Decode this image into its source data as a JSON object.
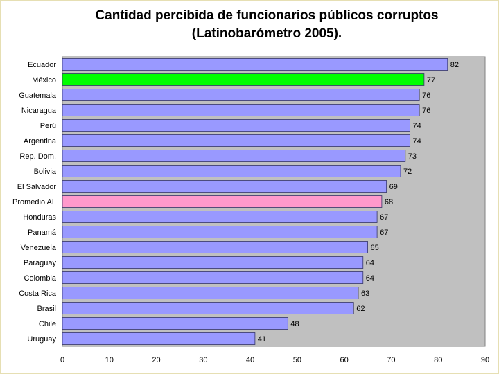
{
  "chart_data": {
    "type": "bar",
    "orientation": "horizontal",
    "title": "Cantidad percibida de funcionarios públicos corruptos",
    "subtitle": "(Latinobarómetro 2005).",
    "categories": [
      "Ecuador",
      "México",
      "Guatemala",
      "Nicaragua",
      "Perú",
      "Argentina",
      "Rep. Dom.",
      "Bolivia",
      "El Salvador",
      "Promedio AL",
      "Honduras",
      "Panamá",
      "Venezuela",
      "Paraguay",
      "Colombia",
      "Costa Rica",
      "Brasil",
      "Chile",
      "Uruguay"
    ],
    "values": [
      82,
      77,
      76,
      76,
      74,
      74,
      73,
      72,
      69,
      68,
      67,
      67,
      65,
      64,
      64,
      63,
      62,
      48,
      41
    ],
    "bar_colors": [
      "#9999ff",
      "#00ff00",
      "#9999ff",
      "#9999ff",
      "#9999ff",
      "#9999ff",
      "#9999ff",
      "#9999ff",
      "#9999ff",
      "#ff99cc",
      "#9999ff",
      "#9999ff",
      "#9999ff",
      "#9999ff",
      "#9999ff",
      "#9999ff",
      "#9999ff",
      "#9999ff",
      "#9999ff"
    ],
    "xlim": [
      0,
      90
    ],
    "xticks": [
      0,
      10,
      20,
      30,
      40,
      50,
      60,
      70,
      80,
      90
    ],
    "plot_background": "#c0c0c0",
    "grid": false,
    "legend": "none"
  }
}
